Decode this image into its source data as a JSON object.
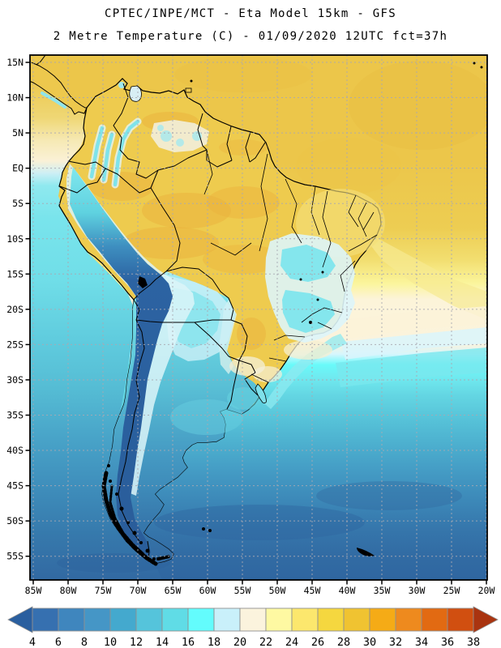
{
  "title": {
    "line1": "CPTEC/INPE/MCT -  Eta Model 15km - GFS",
    "line2": "2 Metre Temperature (C) - 01/09/2020 12UTC fct=37h"
  },
  "axes": {
    "lat_labels": [
      "15N",
      "10N",
      "5N",
      "EQ",
      "5S",
      "10S",
      "15S",
      "20S",
      "25S",
      "30S",
      "35S",
      "40S",
      "45S",
      "50S",
      "55S"
    ],
    "lon_labels": [
      "85W",
      "80W",
      "75W",
      "70W",
      "65W",
      "60W",
      "55W",
      "50W",
      "45W",
      "40W",
      "35W",
      "30W",
      "25W",
      "20W"
    ]
  },
  "colorbar": {
    "tick_values": [
      "4",
      "6",
      "8",
      "10",
      "12",
      "14",
      "16",
      "18",
      "20",
      "22",
      "24",
      "26",
      "28",
      "30",
      "32",
      "34",
      "36",
      "38"
    ],
    "segment_colors": [
      "#3670B0",
      "#3F86BE",
      "#4596C6",
      "#44A9CE",
      "#55C4DB",
      "#60DCE6",
      "#63FCFD",
      "#C9F0FA",
      "#FBF3DD",
      "#FEF9A2",
      "#FCE76D",
      "#F5D73F",
      "#F0C331",
      "#F5AB16",
      "#EE8A1E",
      "#E26A12",
      "#D14F10"
    ],
    "left_arrow_color": "#2A5F9F",
    "right_arrow_color": "#A93410",
    "units": "C"
  },
  "chart_data": {
    "type": "heatmap",
    "title": "CPTEC/INPE/MCT -  Eta Model 15km - GFS",
    "subtitle": "2 Metre Temperature (C) - 01/09/2020 12UTC fct=37h",
    "variable": "2 Metre Temperature",
    "units": "C",
    "x_ticks": [
      "85W",
      "80W",
      "75W",
      "70W",
      "65W",
      "60W",
      "55W",
      "50W",
      "45W",
      "40W",
      "35W",
      "30W",
      "25W",
      "20W"
    ],
    "y_ticks": [
      "15N",
      "10N",
      "5N",
      "EQ",
      "5S",
      "10S",
      "15S",
      "20S",
      "25S",
      "30S",
      "35S",
      "40S",
      "45S",
      "50S",
      "55S"
    ],
    "colorbar_ticks": [
      4,
      6,
      8,
      10,
      12,
      14,
      16,
      18,
      20,
      22,
      24,
      26,
      28,
      30,
      32,
      34,
      36,
      38
    ],
    "colorbar_colors": [
      "#3670B0",
      "#3F86BE",
      "#4596C6",
      "#44A9CE",
      "#55C4DB",
      "#60DCE6",
      "#63FCFD",
      "#C9F0FA",
      "#FBF3DD",
      "#FEF9A2",
      "#FCE76D",
      "#F5D73F",
      "#F0C331",
      "#F5AB16",
      "#EE8A1E",
      "#E26A12",
      "#D14F10"
    ],
    "legend_position": "bottom",
    "grid": "dashed 5-degree graticule",
    "notes": "Warm gold field (24-30C) over tropical South America and adjacent oceans; cyan-to-dark-blue Andes cordillera; cold cyan anomaly patches over eastern Brazil and Bolivia; zonal bands from cream (20C) near 22S to dark steel blue (6-10C) near 55S over the southern oceans."
  }
}
